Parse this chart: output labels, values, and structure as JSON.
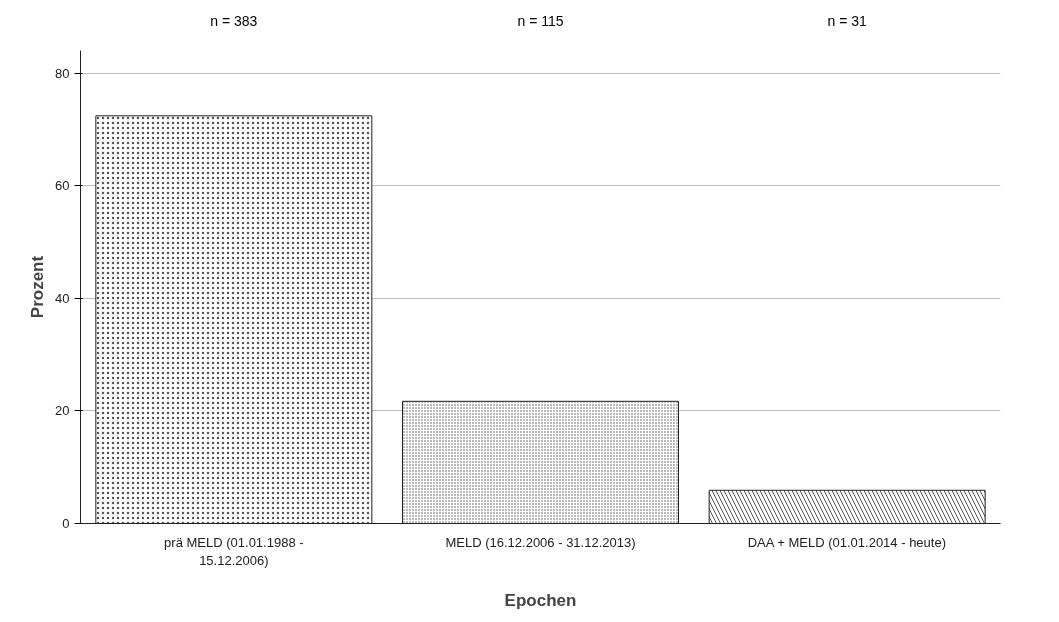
{
  "chart_data": {
    "type": "bar",
    "xlabel": "Epochen",
    "ylabel": "Prozent",
    "categories": [
      "prä MELD (01.01.1988 - 15.12.2006)",
      "MELD (16.12.2006 - 31.12.2013)",
      "DAA + MELD (01.01.2014 - heute)"
    ],
    "values": [
      72.4,
      21.7,
      5.9
    ],
    "colors": [
      "#ffffff",
      "#ffffff",
      "#ffffff"
    ],
    "ylim": [
      0,
      84
    ],
    "yticks": [
      0,
      20,
      40,
      60,
      80
    ],
    "grid": "y",
    "annotations": [
      "n = 383",
      "n = 115",
      "n = 31"
    ]
  }
}
